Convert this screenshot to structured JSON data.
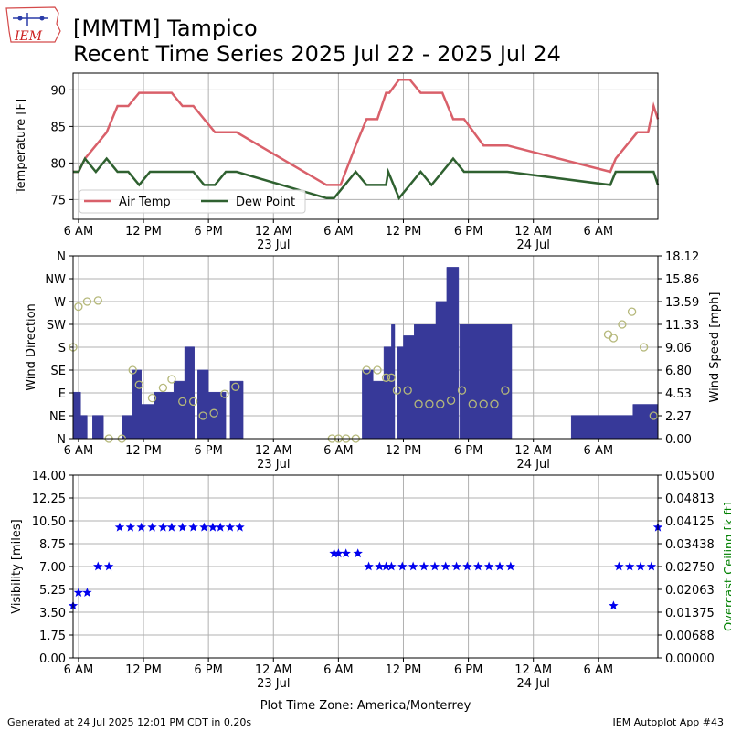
{
  "header": {
    "logo_text": "IEM",
    "title_line1": "[MMTM] Tampico",
    "title_line2": "Recent Time Series 2025 Jul 22 - 2025 Jul 24"
  },
  "footer": {
    "generated": "Generated at 24 Jul 2025 12:01 PM CDT in 0.20s",
    "app": "IEM Autoplot App #43",
    "timezone": "Plot Time Zone: America/Monterrey"
  },
  "colors": {
    "air_temp": "#d9606a",
    "dew_point": "#2f6130",
    "wind_bar": "#373999",
    "wind_dir_marker": "#b5b87a",
    "visibility": "#0000ee",
    "ceiling_label": "#008000",
    "grid": "#b0b0b0"
  },
  "time_axis": {
    "x_range_hours": [
      5.5,
      59.5
    ],
    "ticks": [
      {
        "h": 6,
        "label": "6 AM",
        "sub": ""
      },
      {
        "h": 12,
        "label": "12 PM",
        "sub": ""
      },
      {
        "h": 18,
        "label": "6 PM",
        "sub": ""
      },
      {
        "h": 24,
        "label": "12 AM",
        "sub": "23 Jul"
      },
      {
        "h": 30,
        "label": "6 AM",
        "sub": ""
      },
      {
        "h": 36,
        "label": "12 PM",
        "sub": ""
      },
      {
        "h": 42,
        "label": "6 PM",
        "sub": ""
      },
      {
        "h": 48,
        "label": "12 AM",
        "sub": "24 Jul"
      },
      {
        "h": 54,
        "label": "6 AM",
        "sub": ""
      }
    ]
  },
  "chart_data": [
    {
      "type": "line",
      "ylabel": "Temperature [F]",
      "ylim": [
        72.3,
        92.3
      ],
      "yticks": [
        75,
        80,
        85,
        90
      ],
      "grid": true,
      "legend_placement": "lower-left",
      "series": [
        {
          "name": "Air Temp",
          "color": "#d9606a",
          "points": [
            [
              5.5,
              78.8
            ],
            [
              6,
              78.8
            ],
            [
              6.6,
              80.6
            ],
            [
              7.6,
              82.4
            ],
            [
              8.6,
              84.2
            ],
            [
              9.6,
              87.8
            ],
            [
              10.6,
              87.8
            ],
            [
              11.6,
              89.6
            ],
            [
              14.6,
              89.6
            ],
            [
              15.6,
              87.8
            ],
            [
              16.6,
              87.8
            ],
            [
              17.6,
              86.0
            ],
            [
              18.6,
              84.2
            ],
            [
              20.6,
              84.2
            ],
            [
              28.9,
              77.0
            ],
            [
              30.2,
              77.0
            ],
            [
              31.6,
              82.4
            ],
            [
              32.6,
              86.0
            ],
            [
              33.6,
              86.0
            ],
            [
              34.4,
              89.6
            ],
            [
              34.7,
              89.6
            ],
            [
              35.6,
              91.4
            ],
            [
              36.6,
              91.4
            ],
            [
              37.6,
              89.6
            ],
            [
              39.6,
              89.6
            ],
            [
              40.6,
              86.0
            ],
            [
              41.6,
              86.0
            ],
            [
              43.4,
              82.4
            ],
            [
              45.6,
              82.4
            ],
            [
              55.1,
              78.8
            ],
            [
              55.6,
              80.6
            ],
            [
              56.6,
              82.4
            ],
            [
              57.6,
              84.2
            ],
            [
              58.6,
              84.2
            ],
            [
              59.1,
              87.8
            ],
            [
              59.5,
              86.0
            ]
          ]
        },
        {
          "name": "Dew Point",
          "color": "#2f6130",
          "points": [
            [
              5.5,
              78.8
            ],
            [
              6,
              78.8
            ],
            [
              6.6,
              80.6
            ],
            [
              7.6,
              78.8
            ],
            [
              8.6,
              80.6
            ],
            [
              9.6,
              78.8
            ],
            [
              10.6,
              78.8
            ],
            [
              11.6,
              77.0
            ],
            [
              12.6,
              78.8
            ],
            [
              16.6,
              78.8
            ],
            [
              17.6,
              77.0
            ],
            [
              18.6,
              77.0
            ],
            [
              19.6,
              78.8
            ],
            [
              20.6,
              78.8
            ],
            [
              28.9,
              75.2
            ],
            [
              29.6,
              75.2
            ],
            [
              31.6,
              78.8
            ],
            [
              32.6,
              77.0
            ],
            [
              34.4,
              77.0
            ],
            [
              34.6,
              78.8
            ],
            [
              35.6,
              75.2
            ],
            [
              37.6,
              78.8
            ],
            [
              38.6,
              77.0
            ],
            [
              40.6,
              80.6
            ],
            [
              41.6,
              78.8
            ],
            [
              45.6,
              78.8
            ],
            [
              55.1,
              77.0
            ],
            [
              55.6,
              78.8
            ],
            [
              59.1,
              78.8
            ],
            [
              59.5,
              77.0
            ]
          ]
        }
      ]
    },
    {
      "type": "bar",
      "ylabel": "Wind Direction",
      "y2label": "Wind Speed [mph]",
      "dir_ylim": [
        0,
        360
      ],
      "dir_ticks": [
        "N",
        "NE",
        "E",
        "SE",
        "S",
        "SW",
        "W",
        "NW",
        "N"
      ],
      "speed_ylim": [
        0,
        18.12
      ],
      "speed_ticks": [
        "0.00",
        "2.27",
        "4.53",
        "6.80",
        "9.06",
        "11.33",
        "13.59",
        "15.86",
        "18.12"
      ],
      "grid": true,
      "speed_bars": [
        [
          5.5,
          4.6
        ],
        [
          6,
          4.6
        ],
        [
          6.2,
          2.3
        ],
        [
          6.8,
          0
        ],
        [
          7.3,
          2.3
        ],
        [
          8.3,
          0
        ],
        [
          10,
          2.3
        ],
        [
          11,
          6.8
        ],
        [
          11.8,
          3.4
        ],
        [
          13,
          4.6
        ],
        [
          14.8,
          5.7
        ],
        [
          15.8,
          9.1
        ],
        [
          16.7,
          0
        ],
        [
          17,
          6.8
        ],
        [
          18,
          4.6
        ],
        [
          19.6,
          0
        ],
        [
          20,
          5.7
        ],
        [
          21.2,
          0
        ],
        [
          32.2,
          6.8
        ],
        [
          33.2,
          5.7
        ],
        [
          34.2,
          9.1
        ],
        [
          34.9,
          11.3
        ],
        [
          35.2,
          0
        ],
        [
          35.4,
          9.1
        ],
        [
          36,
          10.2
        ],
        [
          37,
          11.3
        ],
        [
          39,
          13.6
        ],
        [
          40,
          17.0
        ],
        [
          41.1,
          0
        ],
        [
          41.2,
          11.3
        ],
        [
          42,
          11.3
        ],
        [
          46,
          0
        ],
        [
          51.5,
          2.3
        ],
        [
          57.2,
          3.4
        ],
        [
          59.5,
          3.4
        ]
      ],
      "dir_points": [
        [
          5.5,
          180
        ],
        [
          6,
          260
        ],
        [
          6.8,
          270
        ],
        [
          7.8,
          272
        ],
        [
          8.8,
          0
        ],
        [
          10,
          0
        ],
        [
          11,
          135
        ],
        [
          11.6,
          106
        ],
        [
          12.8,
          80
        ],
        [
          13.8,
          100
        ],
        [
          14.6,
          117
        ],
        [
          15.6,
          73
        ],
        [
          16.6,
          73
        ],
        [
          17.5,
          45
        ],
        [
          18.5,
          50
        ],
        [
          19.5,
          88
        ],
        [
          20.5,
          102
        ],
        [
          29.4,
          0
        ],
        [
          30,
          0
        ],
        [
          30.7,
          0
        ],
        [
          31.6,
          0
        ],
        [
          32.6,
          135
        ],
        [
          33.6,
          135
        ],
        [
          34.4,
          120
        ],
        [
          34.9,
          120
        ],
        [
          35.4,
          95
        ],
        [
          36.4,
          95
        ],
        [
          37.4,
          68
        ],
        [
          38.4,
          68
        ],
        [
          39.4,
          68
        ],
        [
          40.4,
          75
        ],
        [
          41.4,
          95
        ],
        [
          42.4,
          68
        ],
        [
          43.4,
          68
        ],
        [
          44.4,
          68
        ],
        [
          45.4,
          95
        ],
        [
          54.9,
          205
        ],
        [
          55.4,
          198
        ],
        [
          56.2,
          225
        ],
        [
          57.1,
          250
        ],
        [
          58.2,
          180
        ],
        [
          59.1,
          45
        ]
      ]
    },
    {
      "type": "scatter",
      "ylabel": "Visibility [miles]",
      "y2label": "Overcast Ceiling [k ft]",
      "ylim": [
        0,
        14
      ],
      "yticks": [
        "0.00",
        "1.75",
        "3.50",
        "5.25",
        "7.00",
        "8.75",
        "10.50",
        "12.25",
        "14.00"
      ],
      "y2lim": [
        0,
        0.055
      ],
      "y2ticks": [
        "0.00000",
        "0.00688",
        "0.01375",
        "0.02063",
        "0.02750",
        "0.03438",
        "0.04125",
        "0.04813",
        "0.05500"
      ],
      "grid": true,
      "points": [
        [
          5.5,
          4
        ],
        [
          6,
          5
        ],
        [
          6.8,
          5
        ],
        [
          7.8,
          7
        ],
        [
          8.8,
          7
        ],
        [
          9.8,
          10
        ],
        [
          10.8,
          10
        ],
        [
          11.8,
          10
        ],
        [
          12.8,
          10
        ],
        [
          13.8,
          10
        ],
        [
          14.6,
          10
        ],
        [
          15.6,
          10
        ],
        [
          16.6,
          10
        ],
        [
          17.6,
          10
        ],
        [
          18.4,
          10
        ],
        [
          19.1,
          10
        ],
        [
          20,
          10
        ],
        [
          20.9,
          10
        ],
        [
          29.6,
          8
        ],
        [
          30,
          8
        ],
        [
          30.7,
          8
        ],
        [
          31.8,
          8
        ],
        [
          32.8,
          7
        ],
        [
          33.8,
          7
        ],
        [
          34.4,
          7
        ],
        [
          34.9,
          7
        ],
        [
          35.9,
          7
        ],
        [
          36.9,
          7
        ],
        [
          37.9,
          7
        ],
        [
          38.9,
          7
        ],
        [
          39.9,
          7
        ],
        [
          40.9,
          7
        ],
        [
          41.9,
          7
        ],
        [
          42.9,
          7
        ],
        [
          43.9,
          7
        ],
        [
          44.9,
          7
        ],
        [
          45.9,
          7
        ],
        [
          55.4,
          4
        ],
        [
          55.9,
          7
        ],
        [
          56.9,
          7
        ],
        [
          57.9,
          7
        ],
        [
          58.9,
          7
        ],
        [
          59.5,
          10
        ]
      ]
    }
  ]
}
